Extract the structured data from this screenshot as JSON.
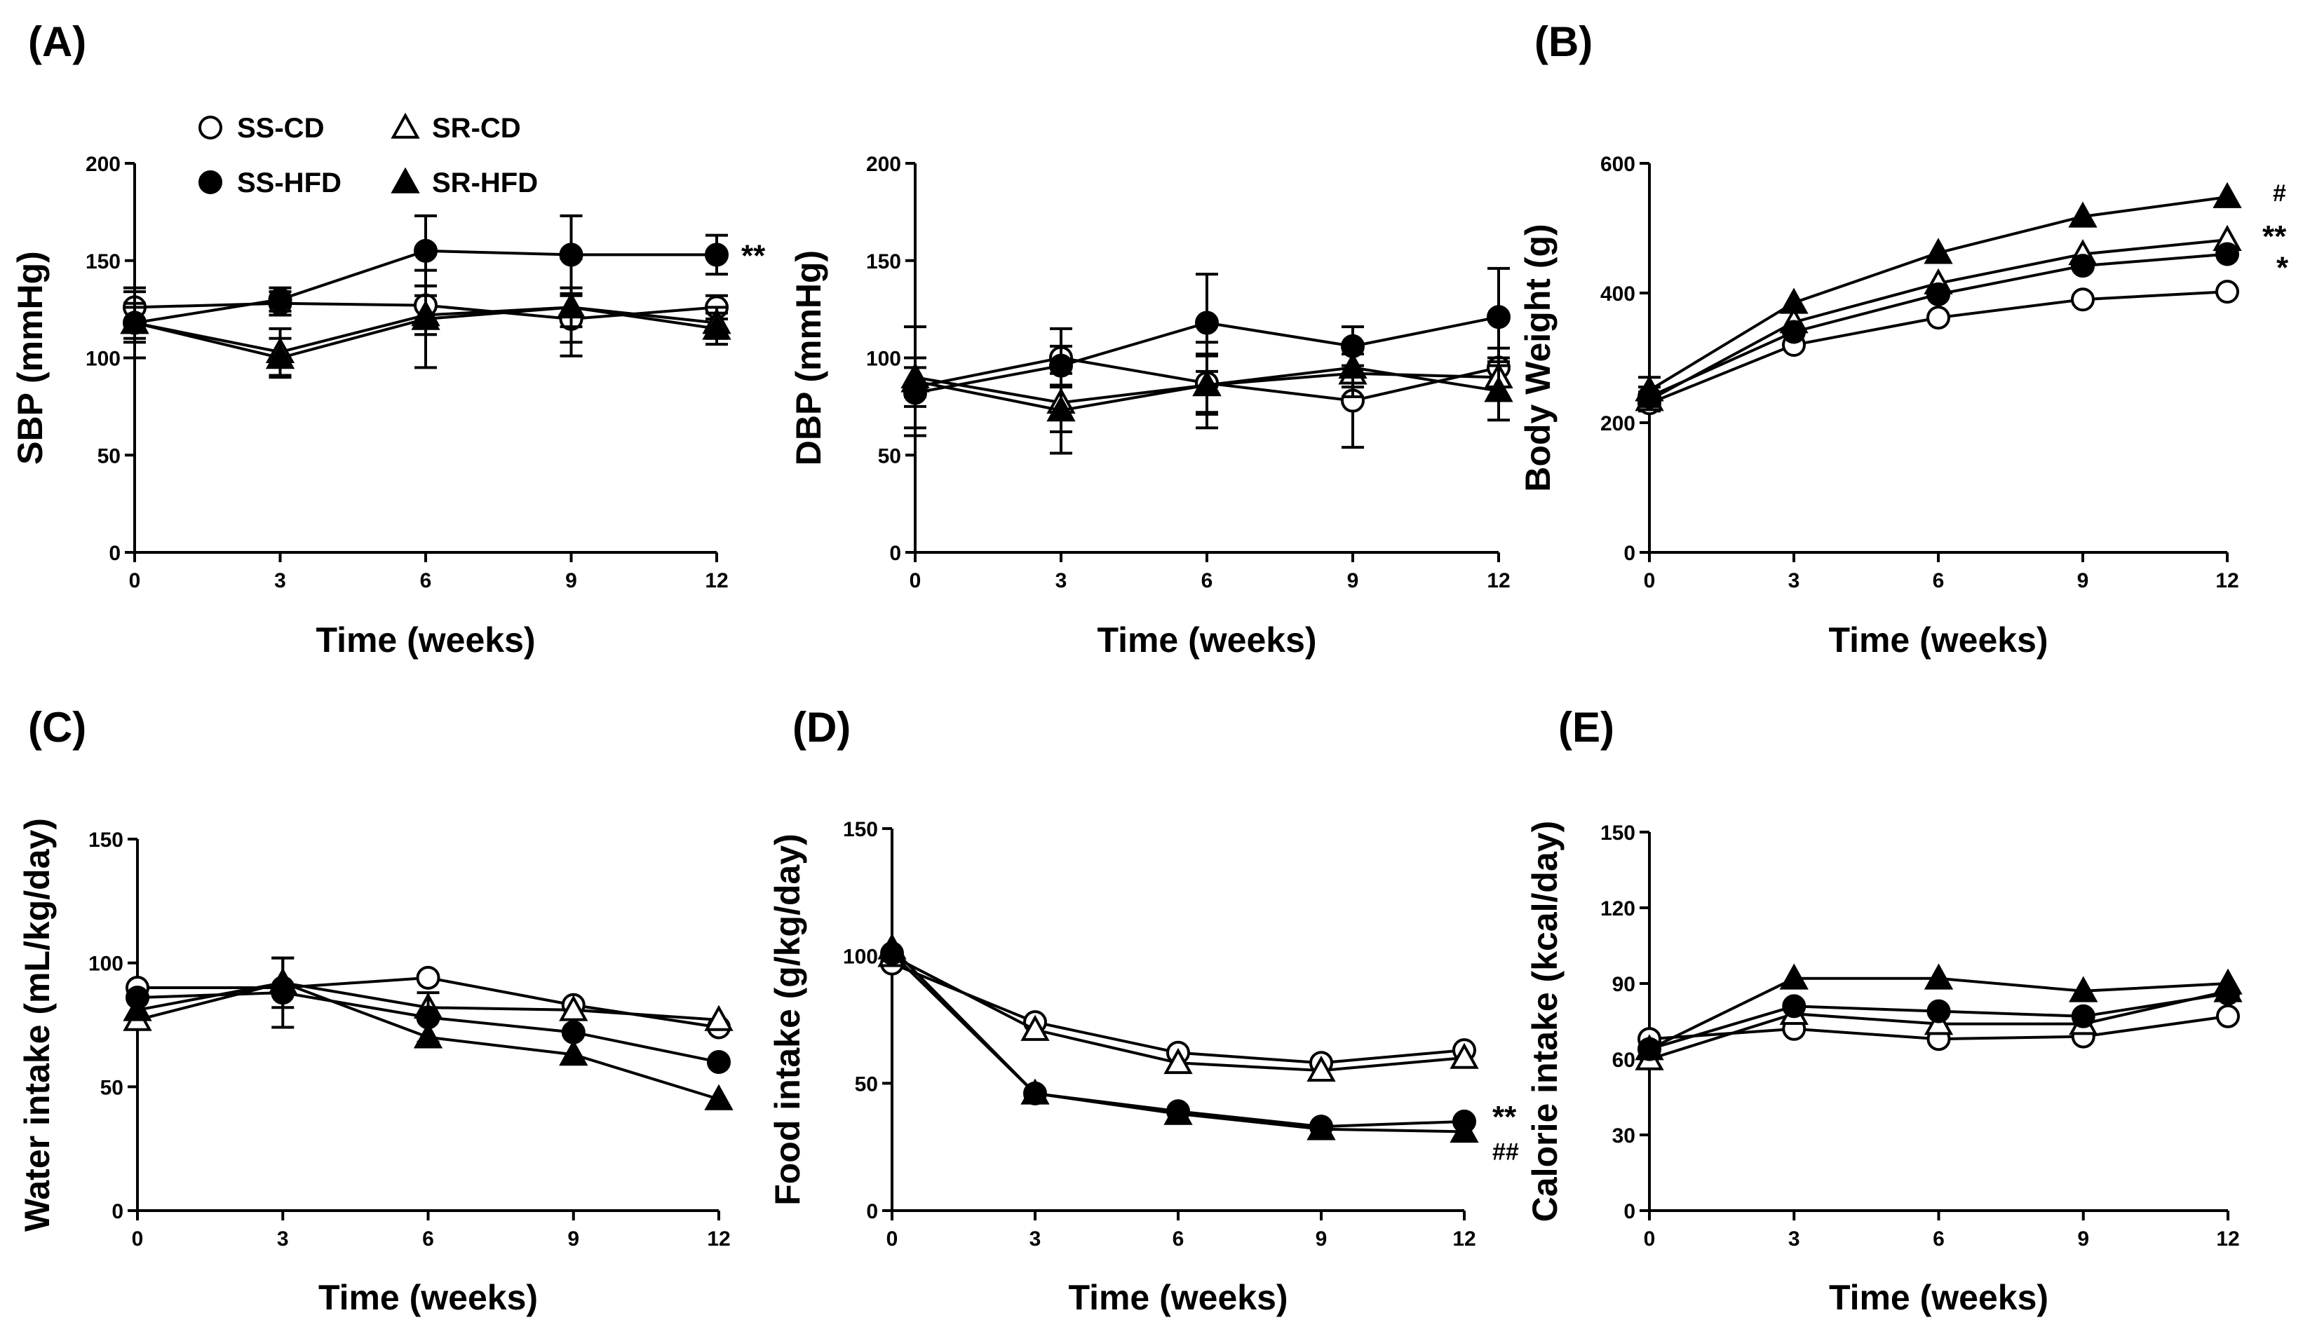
{
  "legend": {
    "items": [
      {
        "label": "SS-CD",
        "marker": "circle-open"
      },
      {
        "label": "SR-CD",
        "marker": "triangle-open"
      },
      {
        "label": "SS-HFD",
        "marker": "circle-filled"
      },
      {
        "label": "SR-HFD",
        "marker": "triangle-filled"
      }
    ]
  },
  "chart_data": [
    {
      "panel": "(A)",
      "type": "line",
      "title": "",
      "xlabel": "Time (weeks)",
      "ylabel": "SBP (mmHg)",
      "x": [
        0,
        3,
        6,
        9,
        12
      ],
      "xticks": [
        "0",
        "3",
        "6",
        "9",
        "12"
      ],
      "ylim": [
        0,
        200
      ],
      "yticks": [
        "0",
        "50",
        "100",
        "150",
        "200"
      ],
      "series": [
        {
          "name": "SS-CD",
          "values": [
            126,
            128,
            127,
            120,
            126
          ],
          "errors": [
            8,
            6,
            10,
            12,
            6
          ]
        },
        {
          "name": "SR-CD",
          "values": [
            118,
            103,
            122,
            126,
            118
          ],
          "errors": [
            8,
            12,
            10,
            10,
            8
          ]
        },
        {
          "name": "SS-HFD",
          "values": [
            118,
            130,
            155,
            153,
            153
          ],
          "errors": [
            10,
            6,
            18,
            20,
            10
          ]
        },
        {
          "name": "SR-HFD",
          "values": [
            118,
            100,
            120,
            126,
            115
          ],
          "errors": [
            18,
            10,
            25,
            25,
            8
          ]
        }
      ],
      "annotations": [
        {
          "text": "**",
          "series": "SS-HFD"
        }
      ]
    },
    {
      "panel": "",
      "type": "line",
      "title": "",
      "xlabel": "Time (weeks)",
      "ylabel": "DBP (mmHg)",
      "x": [
        0,
        3,
        6,
        9,
        12
      ],
      "xticks": [
        "0",
        "3",
        "6",
        "9",
        "12"
      ],
      "ylim": [
        0,
        200
      ],
      "yticks": [
        "0",
        "50",
        "100",
        "150",
        "200"
      ],
      "series": [
        {
          "name": "SS-CD",
          "values": [
            85,
            100,
            87,
            78,
            95
          ],
          "errors": [
            10,
            15,
            15,
            24,
            10
          ]
        },
        {
          "name": "SR-CD",
          "values": [
            90,
            77,
            86,
            92,
            90
          ],
          "errors": [
            10,
            15,
            15,
            12,
            10
          ]
        },
        {
          "name": "SS-HFD",
          "values": [
            82,
            96,
            118,
            106,
            121
          ],
          "errors": [
            18,
            10,
            25,
            10,
            25
          ]
        },
        {
          "name": "SR-HFD",
          "values": [
            88,
            73,
            86,
            95,
            83
          ],
          "errors": [
            28,
            22,
            22,
            10,
            15
          ]
        }
      ],
      "annotations": []
    },
    {
      "panel": "(B)",
      "type": "line",
      "title": "",
      "xlabel": "Time (weeks)",
      "ylabel": "Body Weight (g)",
      "x": [
        0,
        3,
        6,
        9,
        12
      ],
      "xticks": [
        "0",
        "3",
        "6",
        "9",
        "12"
      ],
      "ylim": [
        0,
        600
      ],
      "yticks": [
        "0",
        "200",
        "400",
        "600"
      ],
      "series": [
        {
          "name": "SS-CD",
          "values": [
            230,
            320,
            362,
            390,
            402
          ],
          "errors": [
            12,
            0,
            0,
            0,
            0
          ]
        },
        {
          "name": "SR-CD",
          "values": [
            235,
            355,
            415,
            460,
            482
          ],
          "errors": [
            12,
            0,
            0,
            0,
            0
          ]
        },
        {
          "name": "SS-HFD",
          "values": [
            240,
            340,
            398,
            442,
            460
          ],
          "errors": [
            15,
            0,
            0,
            0,
            0
          ]
        },
        {
          "name": "SR-HFD",
          "values": [
            250,
            385,
            462,
            518,
            548
          ],
          "errors": [
            20,
            0,
            0,
            0,
            0
          ]
        }
      ],
      "annotations": [
        {
          "text": "#",
          "series": "SR-HFD"
        },
        {
          "text": "**",
          "series": "SR-CD"
        },
        {
          "text": "*",
          "series": "SS-HFD"
        }
      ]
    },
    {
      "panel": "(C)",
      "type": "line",
      "title": "",
      "xlabel": "Time (weeks)",
      "ylabel": "Water intake (mL/kg/day)",
      "x": [
        0,
        3,
        6,
        9,
        12
      ],
      "xticks": [
        "0",
        "3",
        "6",
        "9",
        "12"
      ],
      "ylim": [
        0,
        150
      ],
      "yticks": [
        "0",
        "50",
        "100",
        "150"
      ],
      "series": [
        {
          "name": "SS-CD",
          "values": [
            90,
            90,
            94,
            83,
            74
          ],
          "errors": [
            0,
            0,
            0,
            0,
            0
          ]
        },
        {
          "name": "SR-CD",
          "values": [
            77,
            92,
            82,
            81,
            77
          ],
          "errors": [
            0,
            0,
            0,
            0,
            0
          ]
        },
        {
          "name": "SS-HFD",
          "values": [
            86,
            88,
            78,
            72,
            60
          ],
          "errors": [
            0,
            14,
            10,
            0,
            0
          ]
        },
        {
          "name": "SR-HFD",
          "values": [
            81,
            92,
            70,
            63,
            45
          ],
          "errors": [
            0,
            10,
            0,
            0,
            0
          ]
        }
      ],
      "annotations": []
    },
    {
      "panel": "(D)",
      "type": "line",
      "title": "",
      "xlabel": "Time (weeks)",
      "ylabel": "Food intake (g/kg/day)",
      "x": [
        0,
        3,
        6,
        9,
        12
      ],
      "xticks": [
        "0",
        "3",
        "6",
        "9",
        "12"
      ],
      "ylim": [
        0,
        150
      ],
      "yticks": [
        "0",
        "50",
        "100",
        "150"
      ],
      "series": [
        {
          "name": "SS-CD",
          "values": [
            97,
            74,
            62,
            58,
            63
          ],
          "errors": [
            0,
            0,
            0,
            0,
            0
          ]
        },
        {
          "name": "SR-CD",
          "values": [
            100,
            71,
            58,
            55,
            60
          ],
          "errors": [
            0,
            0,
            0,
            0,
            0
          ]
        },
        {
          "name": "SS-HFD",
          "values": [
            101,
            46,
            39,
            33,
            35
          ],
          "errors": [
            0,
            0,
            0,
            0,
            0
          ]
        },
        {
          "name": "SR-HFD",
          "values": [
            103,
            46,
            38,
            32,
            31
          ],
          "errors": [
            0,
            0,
            0,
            0,
            0
          ]
        }
      ],
      "annotations": [
        {
          "text": "**",
          "series": "SS-HFD"
        },
        {
          "text": "##",
          "series": "SR-HFD"
        }
      ]
    },
    {
      "panel": "(E)",
      "type": "line",
      "title": "",
      "xlabel": "Time (weeks)",
      "ylabel": "Calorie intake (kcal/day)",
      "x": [
        0,
        3,
        6,
        9,
        12
      ],
      "xticks": [
        "0",
        "3",
        "6",
        "9",
        "12"
      ],
      "ylim": [
        0,
        150
      ],
      "yticks": [
        "0",
        "30",
        "60",
        "90",
        "120",
        "150"
      ],
      "series": [
        {
          "name": "SS-CD",
          "values": [
            68,
            72,
            68,
            69,
            77
          ],
          "errors": [
            0,
            0,
            0,
            0,
            0
          ]
        },
        {
          "name": "SR-CD",
          "values": [
            60,
            78,
            74,
            74,
            87
          ],
          "errors": [
            0,
            0,
            0,
            0,
            0
          ]
        },
        {
          "name": "SS-HFD",
          "values": [
            64,
            81,
            79,
            77,
            86
          ],
          "errors": [
            0,
            0,
            0,
            0,
            0
          ]
        },
        {
          "name": "SR-HFD",
          "values": [
            64,
            92,
            92,
            87,
            90
          ],
          "errors": [
            0,
            0,
            0,
            0,
            0
          ]
        }
      ],
      "annotations": []
    }
  ]
}
